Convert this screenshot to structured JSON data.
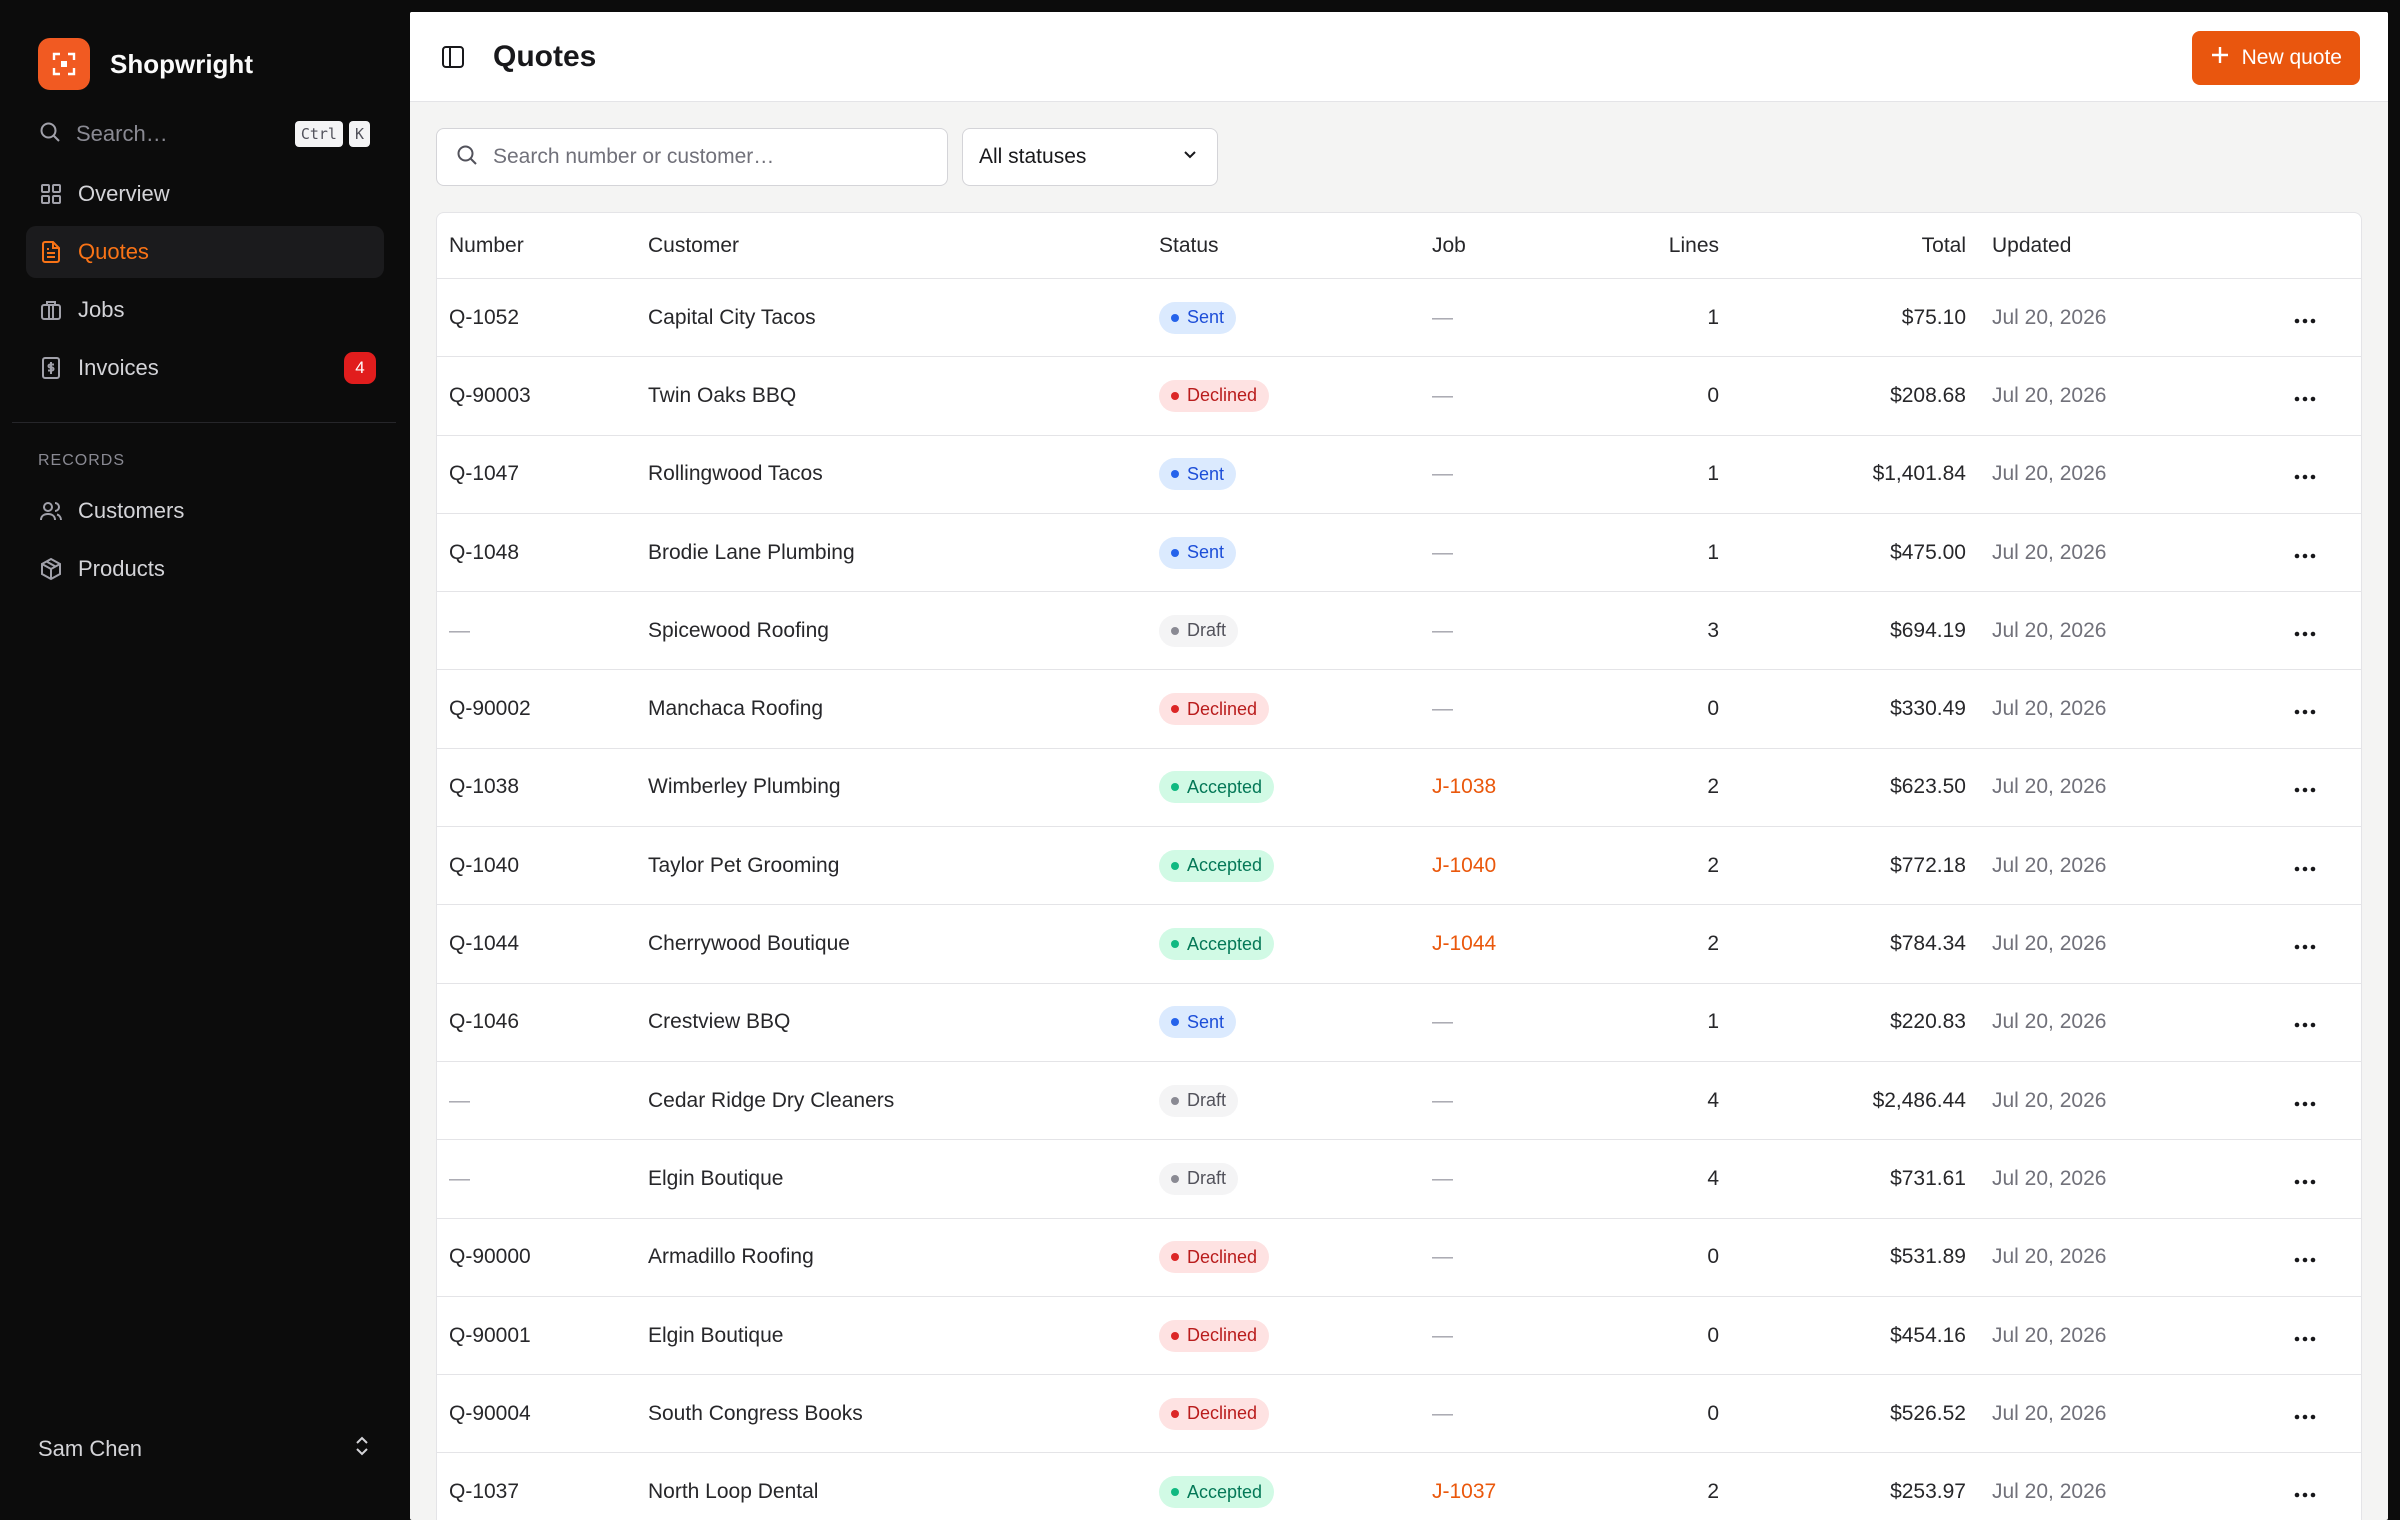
{
  "app": {
    "name": "Shopwright"
  },
  "sidebar": {
    "search_label": "Search…",
    "shortcut": [
      "Ctrl",
      "K"
    ],
    "nav": [
      {
        "label": "Overview",
        "icon": "grid-icon"
      },
      {
        "label": "Quotes",
        "icon": "document-icon",
        "active": true
      },
      {
        "label": "Jobs",
        "icon": "briefcase-icon"
      },
      {
        "label": "Invoices",
        "icon": "receipt-icon",
        "badge": "4"
      }
    ],
    "section_label": "RECORDS",
    "records": [
      {
        "label": "Customers",
        "icon": "users-icon"
      },
      {
        "label": "Products",
        "icon": "box-icon"
      }
    ],
    "user": "Sam Chen"
  },
  "header": {
    "title": "Quotes",
    "new_button": "New quote"
  },
  "filters": {
    "search_placeholder": "Search number or customer…",
    "status_value": "All statuses"
  },
  "table": {
    "columns": {
      "number": "Number",
      "customer": "Customer",
      "status": "Status",
      "job": "Job",
      "lines": "Lines",
      "total": "Total",
      "updated": "Updated"
    },
    "rows": [
      {
        "number": "Q-1052",
        "customer": "Capital City Tacos",
        "status": "Sent",
        "job": "—",
        "lines": "1",
        "total": "$75.10",
        "updated": "Jul 20, 2026"
      },
      {
        "number": "Q-90003",
        "customer": "Twin Oaks BBQ",
        "status": "Declined",
        "job": "—",
        "lines": "0",
        "total": "$208.68",
        "updated": "Jul 20, 2026"
      },
      {
        "number": "Q-1047",
        "customer": "Rollingwood Tacos",
        "status": "Sent",
        "job": "—",
        "lines": "1",
        "total": "$1,401.84",
        "updated": "Jul 20, 2026"
      },
      {
        "number": "Q-1048",
        "customer": "Brodie Lane Plumbing",
        "status": "Sent",
        "job": "—",
        "lines": "1",
        "total": "$475.00",
        "updated": "Jul 20, 2026"
      },
      {
        "number": "—",
        "customer": "Spicewood Roofing",
        "status": "Draft",
        "job": "—",
        "lines": "3",
        "total": "$694.19",
        "updated": "Jul 20, 2026"
      },
      {
        "number": "Q-90002",
        "customer": "Manchaca Roofing",
        "status": "Declined",
        "job": "—",
        "lines": "0",
        "total": "$330.49",
        "updated": "Jul 20, 2026"
      },
      {
        "number": "Q-1038",
        "customer": "Wimberley Plumbing",
        "status": "Accepted",
        "job": "J-1038",
        "lines": "2",
        "total": "$623.50",
        "updated": "Jul 20, 2026"
      },
      {
        "number": "Q-1040",
        "customer": "Taylor Pet Grooming",
        "status": "Accepted",
        "job": "J-1040",
        "lines": "2",
        "total": "$772.18",
        "updated": "Jul 20, 2026"
      },
      {
        "number": "Q-1044",
        "customer": "Cherrywood Boutique",
        "status": "Accepted",
        "job": "J-1044",
        "lines": "2",
        "total": "$784.34",
        "updated": "Jul 20, 2026"
      },
      {
        "number": "Q-1046",
        "customer": "Crestview BBQ",
        "status": "Sent",
        "job": "—",
        "lines": "1",
        "total": "$220.83",
        "updated": "Jul 20, 2026"
      },
      {
        "number": "—",
        "customer": "Cedar Ridge Dry Cleaners",
        "status": "Draft",
        "job": "—",
        "lines": "4",
        "total": "$2,486.44",
        "updated": "Jul 20, 2026"
      },
      {
        "number": "—",
        "customer": "Elgin Boutique",
        "status": "Draft",
        "job": "—",
        "lines": "4",
        "total": "$731.61",
        "updated": "Jul 20, 2026"
      },
      {
        "number": "Q-90000",
        "customer": "Armadillo Roofing",
        "status": "Declined",
        "job": "—",
        "lines": "0",
        "total": "$531.89",
        "updated": "Jul 20, 2026"
      },
      {
        "number": "Q-90001",
        "customer": "Elgin Boutique",
        "status": "Declined",
        "job": "—",
        "lines": "0",
        "total": "$454.16",
        "updated": "Jul 20, 2026"
      },
      {
        "number": "Q-90004",
        "customer": "South Congress Books",
        "status": "Declined",
        "job": "—",
        "lines": "0",
        "total": "$526.52",
        "updated": "Jul 20, 2026"
      },
      {
        "number": "Q-1037",
        "customer": "North Loop Dental",
        "status": "Accepted",
        "job": "J-1037",
        "lines": "2",
        "total": "$253.97",
        "updated": "Jul 20, 2026"
      }
    ]
  },
  "colors": {
    "accent": "#e9560e",
    "sidebar_bg": "#0c0c0c",
    "badge": "#e11d1d"
  }
}
